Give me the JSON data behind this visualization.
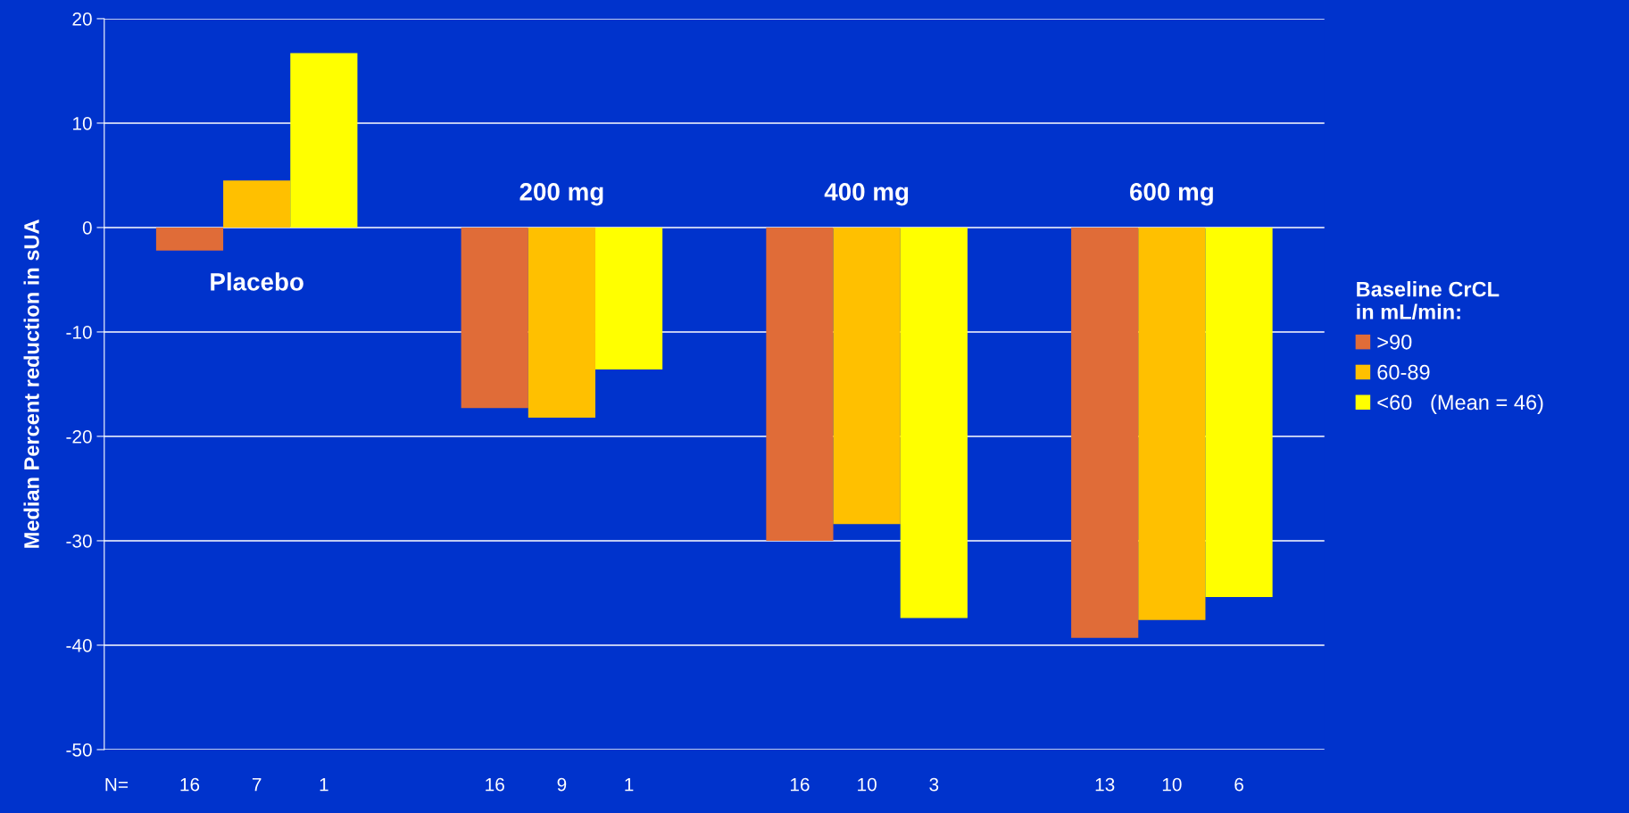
{
  "chart_data": {
    "type": "bar",
    "ylabel": "Median Percent reduction in sUA",
    "categories": [
      "Placebo",
      "200 mg",
      "400 mg",
      "600 mg"
    ],
    "series": [
      {
        "name": ">90",
        "color": "#e06c38",
        "values": [
          -2.2,
          -17.3,
          -30.0,
          -39.3
        ]
      },
      {
        "name": "60-89",
        "color": "#ffc000",
        "values": [
          4.5,
          -18.2,
          -28.4,
          -37.6
        ]
      },
      {
        "name": "<60   (Mean = 46)",
        "color": "#ffff00",
        "values": [
          16.7,
          -13.6,
          -37.4,
          -35.4
        ]
      }
    ],
    "legend_title": "Baseline CrCL\nin mL/min:",
    "annotations": [
      "N=",
      "16",
      "7",
      "1",
      "16",
      "9",
      "1",
      "16",
      "10",
      "3",
      "13",
      "10",
      "6"
    ],
    "ylim": [
      -50,
      20
    ],
    "yticks": [
      -50,
      -40,
      -30,
      -20,
      -10,
      0,
      10,
      20
    ],
    "grid": "y",
    "legend": "right"
  }
}
